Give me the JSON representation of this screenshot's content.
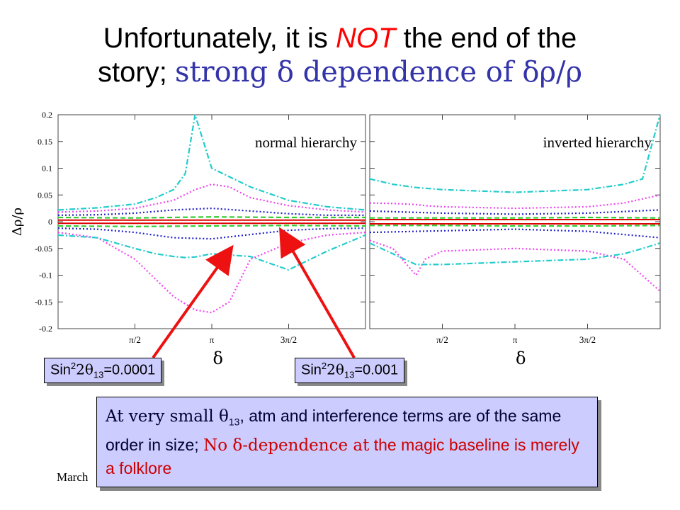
{
  "title": {
    "line1_a": "Unfortunately, it is ",
    "line1_b": "NOT",
    "line1_c": " the end of the",
    "line2_a": "story; ",
    "line2_b": "strong δ dependence of δρ/ρ"
  },
  "callouts": {
    "left": {
      "prefix": "Sin",
      "sup": "2",
      "mid": "2θ",
      "sub": "13",
      "suffix": "=0.0001"
    },
    "right": {
      "prefix": "Sin",
      "sup": "2",
      "mid": "2θ",
      "sub": "13",
      "suffix": "=0.001"
    }
  },
  "note": {
    "part1": "At very small θ",
    "sub": "13",
    "part2": ", atm and interference terms are of the same order in size; ",
    "part3_red": "No δ-dependence at",
    "part4_red": "the magic baseline is merely a folklore"
  },
  "footer": "March",
  "colors": {
    "title_red": "#ff0000",
    "title_blue": "#3333aa",
    "arrow": "#ee1111",
    "box_fill": "#ccccff",
    "red": "#dd0000",
    "green": "#33cc33",
    "blue": "#2222cc",
    "magenta": "#ee44ee",
    "cyan": "#22cccc"
  },
  "chart_data": {
    "type": "line",
    "ylabel": "Δρ/ρ",
    "xlabel": "δ",
    "ylim": [
      -0.2,
      0.2
    ],
    "yticks": [
      "0.2",
      "0.15",
      "0.1",
      "0.05",
      "0",
      "-0.05",
      "-0.1",
      "-0.15",
      "-0.2"
    ],
    "xlim": [
      0,
      6.2832
    ],
    "xticks": [
      "π/2",
      "π",
      "3π/2"
    ],
    "panels": [
      {
        "annotation": "normal hierarchy",
        "series": [
          {
            "color": "#dd0000",
            "style": "solid",
            "x": [
              0,
              1.57,
              3.14,
              4.71,
              6.28
            ],
            "upper": [
              0.003,
              0.003,
              0.003,
              0.003,
              0.003
            ],
            "lower": [
              -0.003,
              -0.003,
              -0.003,
              -0.003,
              -0.003
            ]
          },
          {
            "color": "#33cc33",
            "style": "dashed",
            "x": [
              0,
              1.57,
              3.14,
              4.71,
              6.28
            ],
            "upper": [
              0.008,
              0.007,
              0.009,
              0.008,
              0.008
            ],
            "lower": [
              -0.008,
              -0.009,
              -0.008,
              -0.007,
              -0.008
            ]
          },
          {
            "color": "#2222cc",
            "style": "dotted",
            "x": [
              0,
              0.8,
              1.57,
              2.36,
              3.14,
              3.93,
              4.71,
              5.5,
              6.28
            ],
            "upper": [
              0.012,
              0.013,
              0.016,
              0.022,
              0.025,
              0.02,
              0.015,
              0.012,
              0.012
            ],
            "lower": [
              -0.012,
              -0.014,
              -0.02,
              -0.03,
              -0.032,
              -0.024,
              -0.016,
              -0.013,
              -0.012
            ]
          },
          {
            "color": "#ee44ee",
            "style": "dotted",
            "x": [
              0,
              0.8,
              1.57,
              2.36,
              2.8,
              3.14,
              3.5,
              3.93,
              4.71,
              5.5,
              6.28
            ],
            "upper": [
              0.018,
              0.02,
              0.025,
              0.04,
              0.06,
              0.07,
              0.065,
              0.045,
              0.03,
              0.022,
              0.018
            ],
            "lower": [
              -0.02,
              -0.03,
              -0.07,
              -0.14,
              -0.165,
              -0.17,
              -0.15,
              -0.07,
              -0.04,
              -0.025,
              -0.02
            ]
          },
          {
            "color": "#22cccc",
            "style": "dashdot",
            "x": [
              0,
              0.8,
              1.57,
              2.0,
              2.36,
              2.6,
              2.8,
              3.14,
              3.93,
              4.71,
              5.5,
              6.28
            ],
            "upper": [
              0.022,
              0.026,
              0.033,
              0.045,
              0.06,
              0.09,
              0.2,
              0.1,
              0.065,
              0.04,
              0.028,
              0.022
            ],
            "lower": [
              -0.025,
              -0.03,
              -0.05,
              -0.06,
              -0.065,
              -0.067,
              -0.066,
              -0.06,
              -0.065,
              -0.09,
              -0.055,
              -0.025
            ]
          }
        ]
      },
      {
        "annotation": "inverted hierarchy",
        "series": [
          {
            "color": "#dd0000",
            "style": "solid",
            "x": [
              0,
              1.57,
              3.14,
              4.71,
              6.28
            ],
            "upper": [
              0.004,
              0.004,
              0.004,
              0.004,
              0.004
            ],
            "lower": [
              -0.004,
              -0.004,
              -0.004,
              -0.004,
              -0.004
            ]
          },
          {
            "color": "#33cc33",
            "style": "dashed",
            "x": [
              0,
              1.57,
              3.14,
              4.71,
              6.28
            ],
            "upper": [
              0.007,
              0.007,
              0.007,
              0.008,
              0.007
            ],
            "lower": [
              -0.007,
              -0.007,
              -0.008,
              -0.008,
              -0.007
            ]
          },
          {
            "color": "#2222cc",
            "style": "dotted",
            "x": [
              0,
              1.57,
              3.14,
              4.71,
              6.28
            ],
            "upper": [
              0.02,
              0.016,
              0.014,
              0.016,
              0.022
            ],
            "lower": [
              -0.02,
              -0.017,
              -0.014,
              -0.018,
              -0.03
            ]
          },
          {
            "color": "#ee44ee",
            "style": "dotted",
            "x": [
              0,
              0.5,
              0.8,
              1.0,
              1.2,
              1.57,
              3.14,
              4.71,
              5.5,
              6.28
            ],
            "upper": [
              0.035,
              0.034,
              0.033,
              0.032,
              0.03,
              0.028,
              0.025,
              0.028,
              0.035,
              0.05
            ],
            "lower": [
              -0.035,
              -0.05,
              -0.08,
              -0.1,
              -0.07,
              -0.055,
              -0.05,
              -0.055,
              -0.07,
              -0.13
            ]
          },
          {
            "color": "#22cccc",
            "style": "dashdot",
            "x": [
              0,
              0.5,
              1.0,
              1.57,
              3.14,
              4.71,
              5.5,
              5.9,
              6.28
            ],
            "upper": [
              0.08,
              0.07,
              0.064,
              0.06,
              0.055,
              0.06,
              0.07,
              0.08,
              0.2
            ],
            "lower": [
              -0.04,
              -0.06,
              -0.08,
              -0.08,
              -0.075,
              -0.07,
              -0.06,
              -0.05,
              -0.04
            ]
          }
        ]
      }
    ]
  }
}
